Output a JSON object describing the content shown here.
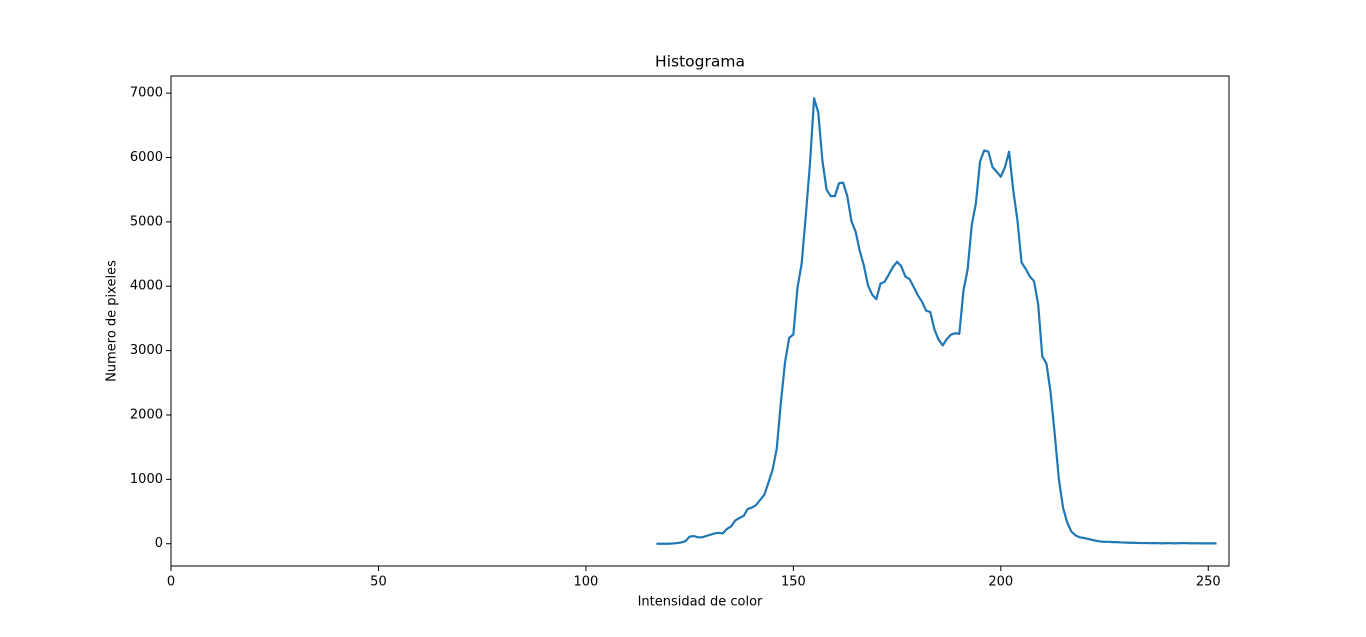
{
  "chart_data": {
    "type": "line",
    "title": "Histograma",
    "xlabel": "Intensidad de color",
    "ylabel": "Numero de pixeles",
    "x": [
      117,
      118,
      119,
      120,
      121,
      122,
      123,
      124,
      125,
      126,
      127,
      128,
      129,
      130,
      131,
      132,
      133,
      134,
      135,
      136,
      137,
      138,
      139,
      140,
      141,
      142,
      143,
      144,
      145,
      146,
      147,
      148,
      149,
      150,
      151,
      152,
      153,
      154,
      155,
      156,
      157,
      158,
      159,
      160,
      161,
      162,
      163,
      164,
      165,
      166,
      167,
      168,
      169,
      170,
      171,
      172,
      173,
      174,
      175,
      176,
      177,
      178,
      179,
      180,
      181,
      182,
      183,
      184,
      185,
      186,
      187,
      188,
      189,
      190,
      191,
      192,
      193,
      194,
      195,
      196,
      197,
      198,
      199,
      200,
      201,
      202,
      203,
      204,
      205,
      206,
      207,
      208,
      209,
      210,
      211,
      212,
      213,
      214,
      215,
      216,
      217,
      218,
      219,
      220,
      221,
      222,
      223,
      224,
      225,
      226,
      227,
      228,
      229,
      230,
      231,
      232,
      233,
      234,
      235,
      236,
      237,
      238,
      239,
      240,
      241,
      242,
      243,
      244,
      245,
      246,
      247,
      248,
      249,
      250,
      251,
      252
    ],
    "series": [
      {
        "color": "#1f77b4",
        "values": [
          0,
          0,
          0,
          0,
          5,
          10,
          20,
          40,
          110,
          120,
          100,
          100,
          120,
          140,
          160,
          170,
          160,
          230,
          270,
          360,
          400,
          430,
          540,
          560,
          600,
          680,
          760,
          950,
          1150,
          1480,
          2200,
          2820,
          3200,
          3250,
          3980,
          4350,
          5100,
          5900,
          6920,
          6700,
          5950,
          5500,
          5400,
          5400,
          5600,
          5610,
          5400,
          5010,
          4850,
          4550,
          4320,
          4010,
          3870,
          3800,
          4040,
          4070,
          4180,
          4300,
          4380,
          4310,
          4150,
          4110,
          3990,
          3860,
          3760,
          3620,
          3600,
          3330,
          3170,
          3080,
          3180,
          3250,
          3270,
          3260,
          3930,
          4260,
          4950,
          5290,
          5940,
          6110,
          6090,
          5850,
          5780,
          5700,
          5850,
          6090,
          5490,
          5030,
          4370,
          4270,
          4150,
          4080,
          3720,
          2910,
          2800,
          2350,
          1700,
          1000,
          560,
          330,
          190,
          130,
          100,
          90,
          75,
          60,
          45,
          35,
          30,
          30,
          25,
          25,
          20,
          18,
          15,
          15,
          12,
          10,
          10,
          8,
          10,
          8,
          6,
          10,
          8,
          6,
          8,
          10,
          8,
          6,
          8,
          6,
          5,
          6,
          5,
          5
        ]
      }
    ],
    "xlim": [
      0,
      255
    ],
    "ylim": [
      -346,
      7266
    ],
    "xticks": [
      0,
      50,
      100,
      150,
      200,
      250
    ],
    "yticks": [
      0,
      1000,
      2000,
      3000,
      4000,
      5000,
      6000,
      7000
    ]
  }
}
